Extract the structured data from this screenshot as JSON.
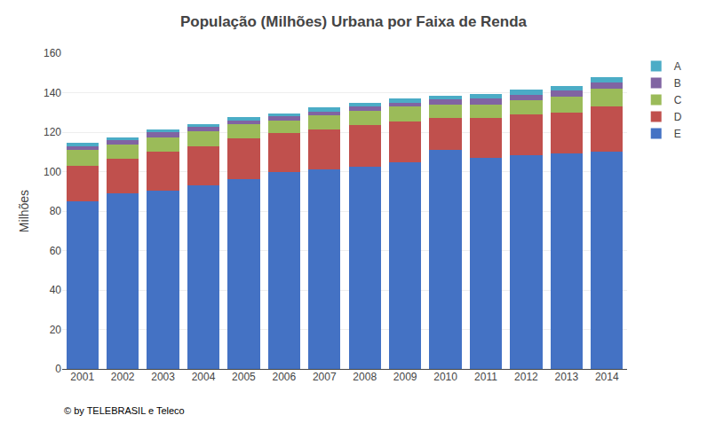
{
  "chart_data": {
    "type": "bar",
    "stacked": true,
    "title": "População (Milhões) Urbana por Faixa de Renda",
    "ylabel": "Milhões",
    "annotations": [
      "© by TELEBRASIL e Teleco"
    ],
    "categories": [
      "2001",
      "2002",
      "2003",
      "2004",
      "2005",
      "2006",
      "2007",
      "2008",
      "2009",
      "2010",
      "2011",
      "2012",
      "2013",
      "2014"
    ],
    "series": [
      {
        "name": "E",
        "color": "#4472C4",
        "values": [
          85.0,
          89.0,
          90.5,
          93.0,
          96.0,
          100.0,
          101.0,
          102.5,
          104.5,
          111.0,
          107.0,
          108.5,
          109.0,
          110.0
        ]
      },
      {
        "name": "D",
        "color": "#C0504D",
        "values": [
          18.0,
          17.5,
          19.5,
          20.0,
          21.0,
          19.5,
          20.5,
          21.0,
          21.0,
          16.0,
          20.0,
          20.5,
          21.0,
          23.0
        ]
      },
      {
        "name": "C",
        "color": "#9BBB59",
        "values": [
          8.0,
          7.0,
          7.5,
          7.5,
          7.0,
          6.5,
          7.0,
          7.5,
          7.5,
          7.0,
          7.0,
          7.0,
          8.0,
          9.0
        ]
      },
      {
        "name": "B",
        "color": "#8064A2",
        "values": [
          2.0,
          2.5,
          2.5,
          2.0,
          2.0,
          2.0,
          2.0,
          2.0,
          2.0,
          2.5,
          3.0,
          3.0,
          3.0,
          3.0
        ]
      },
      {
        "name": "A",
        "color": "#4BACC6",
        "values": [
          1.5,
          1.5,
          1.5,
          1.5,
          1.5,
          1.5,
          2.0,
          2.0,
          2.0,
          2.0,
          2.5,
          2.5,
          2.5,
          3.0
        ]
      }
    ],
    "ylim": [
      0,
      160
    ],
    "yticks": [
      0,
      20,
      40,
      60,
      80,
      100,
      120,
      140,
      160
    ],
    "grid": true,
    "legend": "right"
  }
}
